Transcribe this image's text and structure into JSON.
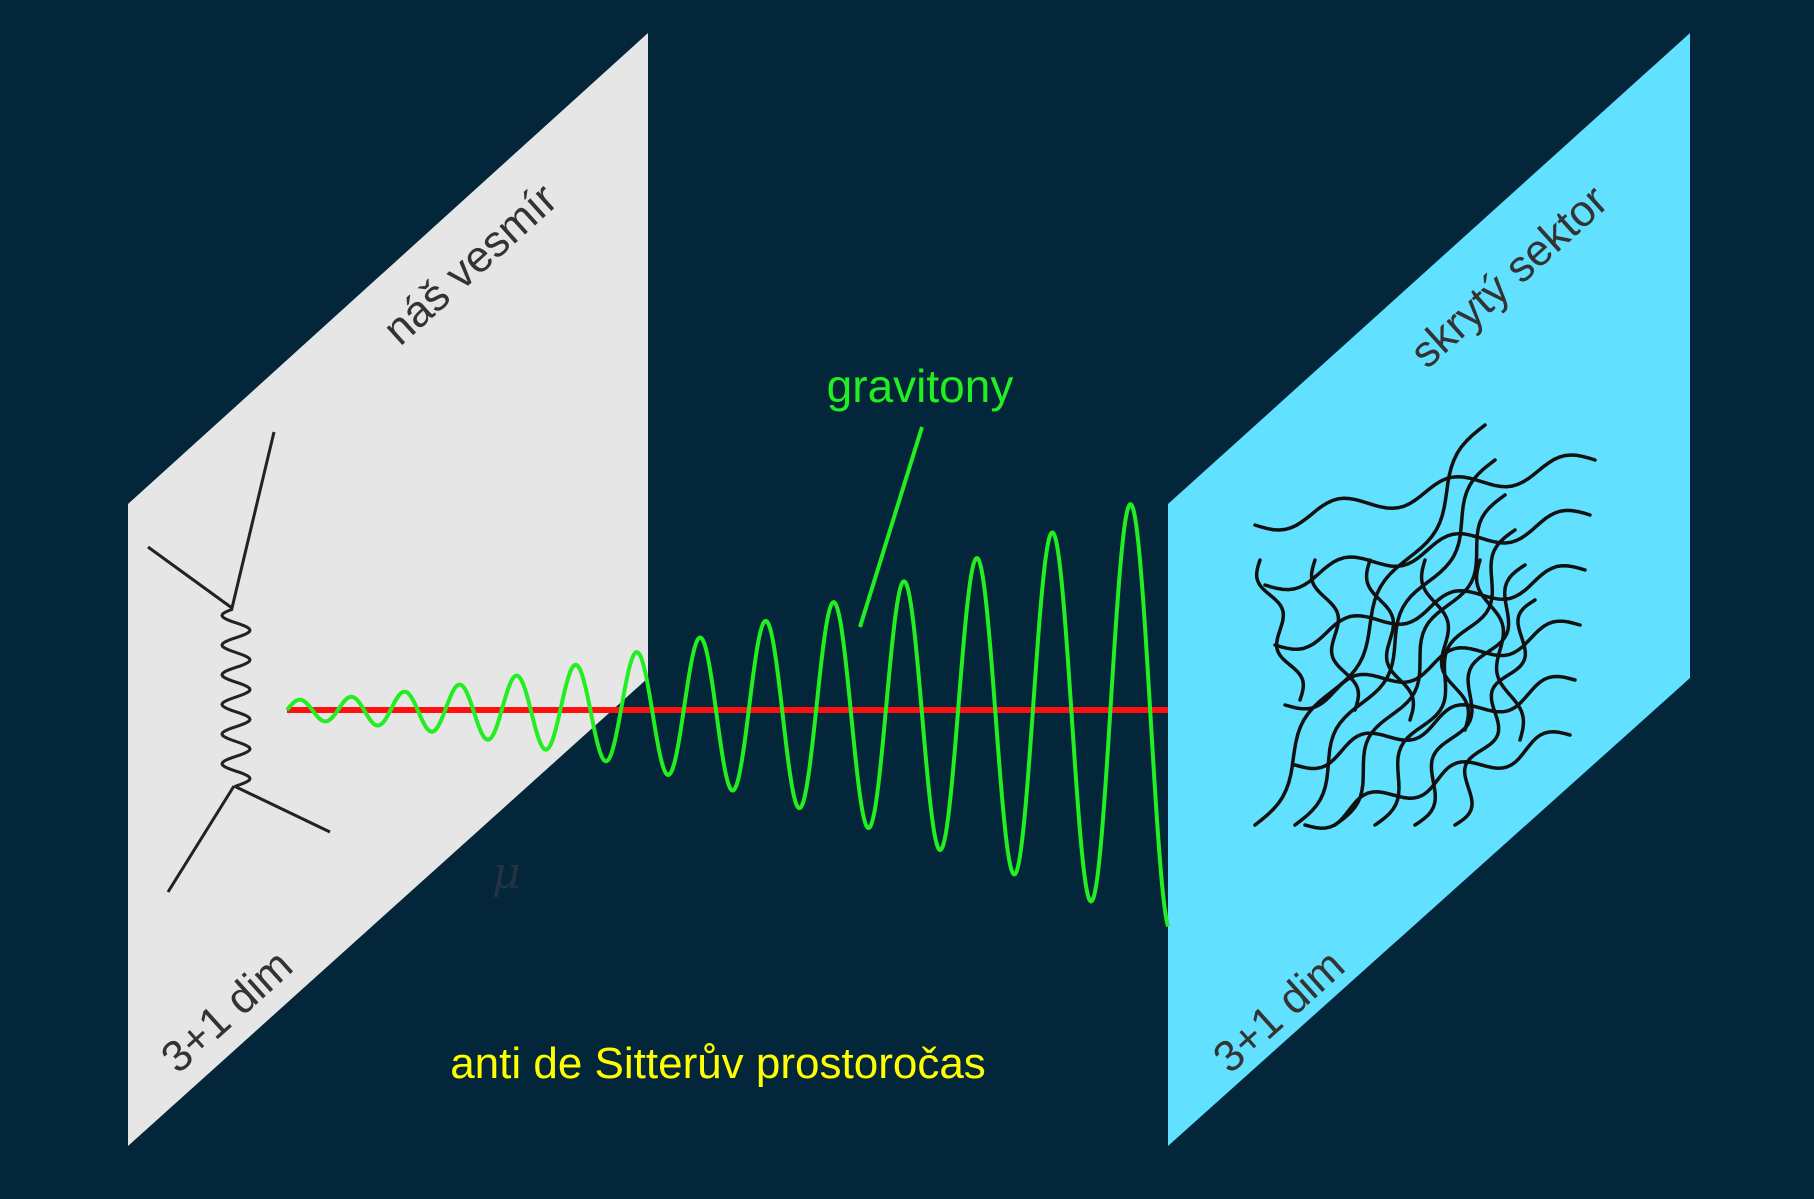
{
  "diagram": {
    "background_color": "#03263b",
    "left_brane": {
      "title": "náš vesmír",
      "dimension_label": "3+1 dim",
      "fill_color": "#e6e6e6",
      "text_color": "#333333",
      "content_icon": "feynman-vertex-icon"
    },
    "right_brane": {
      "title": "skrytý sektor",
      "dimension_label": "3+1 dim",
      "fill_color": "#62e0ff",
      "text_color": "#333333",
      "content_icon": "hidden-sector-mesh-icon"
    },
    "graviton_label": "gravitony",
    "graviton_color": "#22ee22",
    "axis_line_color": "#ff1010",
    "mu_symbol": "μ",
    "bulk_label": "anti de Sitterův prostoročas",
    "bulk_label_color": "#ffff00"
  }
}
